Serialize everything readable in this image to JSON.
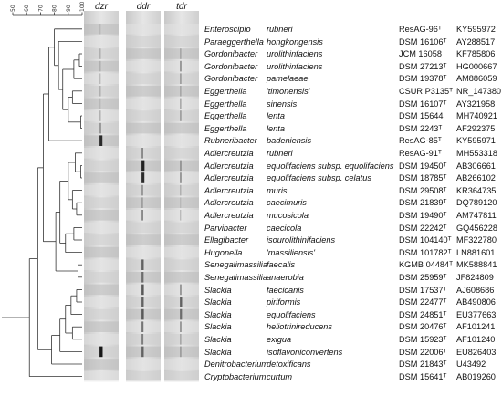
{
  "scale": {
    "ticks": [
      50,
      60,
      70,
      80,
      90,
      100
    ]
  },
  "lanes": [
    {
      "key": "dzr",
      "label": "dzr"
    },
    {
      "key": "ddr",
      "label": "ddr"
    },
    {
      "key": "tdr",
      "label": "tdr"
    }
  ],
  "taxa": [
    {
      "genus": "Enteroscipio",
      "species": "rubneri",
      "strain": "ResAG-96ᵀ",
      "accession": "KY595972",
      "bands": {
        "dzr": 0.1,
        "ddr": 0.0,
        "tdr": 0.0
      }
    },
    {
      "genus": "Paraeggerthella",
      "species": "hongkongensis",
      "strain": "DSM 16106ᵀ",
      "accession": "AY288517",
      "bands": {
        "dzr": 0.0,
        "ddr": 0.0,
        "tdr": 0.0
      }
    },
    {
      "genus": "Gordonibacter",
      "species": "urolithinfaciens",
      "strain": "JCM 16058",
      "accession": "KF785806",
      "bands": {
        "dzr": 0.15,
        "ddr": 0.0,
        "tdr": 0.2
      }
    },
    {
      "genus": "Gordonibacter",
      "species": "urolithinfaciens",
      "strain": "DSM 27213ᵀ",
      "accession": "HG000667",
      "bands": {
        "dzr": 0.15,
        "ddr": 0.0,
        "tdr": 0.3
      }
    },
    {
      "genus": "Gordonibacter",
      "species": "pamelaeae",
      "strain": "DSM 19378ᵀ",
      "accession": "AM886059",
      "bands": {
        "dzr": 0.1,
        "ddr": 0.0,
        "tdr": 0.25
      }
    },
    {
      "genus": "Eggerthella",
      "species": "'timonensis'",
      "strain": "CSUR P3135ᵀ",
      "accession": "NR_147380",
      "bands": {
        "dzr": 0.15,
        "ddr": 0.0,
        "tdr": 0.2
      }
    },
    {
      "genus": "Eggerthella",
      "species": "sinensis",
      "strain": "DSM 16107ᵀ",
      "accession": "AY321958",
      "bands": {
        "dzr": 0.1,
        "ddr": 0.0,
        "tdr": 0.2
      }
    },
    {
      "genus": "Eggerthella",
      "species": "lenta",
      "strain": "DSM 15644",
      "accession": "MH740921",
      "bands": {
        "dzr": 0.15,
        "ddr": 0.0,
        "tdr": 0.25
      }
    },
    {
      "genus": "Eggerthella",
      "species": "lenta",
      "strain": "DSM 2243ᵀ",
      "accession": "AF292375",
      "bands": {
        "dzr": 0.3,
        "ddr": 0.0,
        "tdr": 0.0
      }
    },
    {
      "genus": "Rubneribacter",
      "species": "badeniensis",
      "strain": "ResAG-85ᵀ",
      "accession": "KY595971",
      "bands": {
        "dzr": 0.85,
        "ddr": 0.0,
        "tdr": 0.0
      }
    },
    {
      "genus": "Adlercreutzia",
      "species": "rubneri",
      "strain": "ResAG-91ᵀ",
      "accession": "MH553318",
      "bands": {
        "dzr": 0.0,
        "ddr": 0.35,
        "tdr": 0.0
      }
    },
    {
      "genus": "Adlercreutzia",
      "species": "equolifaciens subsp. equolifaciens",
      "strain": "DSM 19450ᵀ",
      "accession": "AB306661",
      "bands": {
        "dzr": 0.0,
        "ddr": 0.9,
        "tdr": 0.3
      }
    },
    {
      "genus": "Adlercreutzia",
      "species": "equolifaciens subsp. celatus",
      "strain": "DSM 18785ᵀ",
      "accession": "AB266102",
      "bands": {
        "dzr": 0.0,
        "ddr": 0.85,
        "tdr": 0.3
      }
    },
    {
      "genus": "Adlercreutzia",
      "species": "muris",
      "strain": "DSM 29508ᵀ",
      "accession": "KR364735",
      "bands": {
        "dzr": 0.0,
        "ddr": 0.3,
        "tdr": 0.15
      }
    },
    {
      "genus": "Adlercreutzia",
      "species": "caecimuris",
      "strain": "DSM 21839ᵀ",
      "accession": "DQ789120",
      "bands": {
        "dzr": 0.0,
        "ddr": 0.25,
        "tdr": 0.1
      }
    },
    {
      "genus": "Adlercreutzia",
      "species": "mucosicola",
      "strain": "DSM 19490ᵀ",
      "accession": "AM747811",
      "bands": {
        "dzr": 0.0,
        "ddr": 0.35,
        "tdr": 0.1
      }
    },
    {
      "genus": "Parvibacter",
      "species": "caecicola",
      "strain": "DSM 22242ᵀ",
      "accession": "GQ456228",
      "bands": {
        "dzr": 0.0,
        "ddr": 0.0,
        "tdr": 0.0
      }
    },
    {
      "genus": "Ellagibacter",
      "species": "isourolithinifaciens",
      "strain": "DSM 104140ᵀ",
      "accession": "MF322780",
      "bands": {
        "dzr": 0.0,
        "ddr": 0.0,
        "tdr": 0.0
      }
    },
    {
      "genus": "Hugonella",
      "species": "'massiliensis'",
      "strain": "DSM 101782ᵀ",
      "accession": "LN881601",
      "bands": {
        "dzr": 0.0,
        "ddr": 0.0,
        "tdr": 0.0
      }
    },
    {
      "genus": "Senegalimassilia",
      "species": "faecalis",
      "strain": "KGMB 04484ᵀ",
      "accession": "MK588841",
      "bands": {
        "dzr": 0.0,
        "ddr": 0.55,
        "tdr": 0.0
      }
    },
    {
      "genus": "Senegalimassilia",
      "species": "anaerobia",
      "strain": "DSM 25959ᵀ",
      "accession": "JF824809",
      "bands": {
        "dzr": 0.0,
        "ddr": 0.5,
        "tdr": 0.0
      }
    },
    {
      "genus": "Slackia",
      "species": "faecicanis",
      "strain": "DSM 17537ᵀ",
      "accession": "AJ608686",
      "bands": {
        "dzr": 0.0,
        "ddr": 0.6,
        "tdr": 0.3
      }
    },
    {
      "genus": "Slackia",
      "species": "piriformis",
      "strain": "DSM 22477ᵀ",
      "accession": "AB490806",
      "bands": {
        "dzr": 0.0,
        "ddr": 0.55,
        "tdr": 0.55
      }
    },
    {
      "genus": "Slackia",
      "species": "equolifaciens",
      "strain": "DSM 24851ᵀ",
      "accession": "EU377663",
      "bands": {
        "dzr": 0.0,
        "ddr": 0.6,
        "tdr": 0.5
      }
    },
    {
      "genus": "Slackia",
      "species": "heliotrinireducens",
      "strain": "DSM 20476ᵀ",
      "accession": "AF101241",
      "bands": {
        "dzr": 0.0,
        "ddr": 0.45,
        "tdr": 0.3
      }
    },
    {
      "genus": "Slackia",
      "species": "exigua",
      "strain": "DSM 15923ᵀ",
      "accession": "AF101240",
      "bands": {
        "dzr": 0.0,
        "ddr": 0.4,
        "tdr": 0.2
      }
    },
    {
      "genus": "Slackia",
      "species": "isoflavoniconvertens",
      "strain": "DSM 22006ᵀ",
      "accession": "EU826403",
      "bands": {
        "dzr": 0.95,
        "ddr": 0.55,
        "tdr": 0.25
      }
    },
    {
      "genus": "Denitrobacterium",
      "species": "detoxificans",
      "strain": "DSM 21843ᵀ",
      "accession": "U43492",
      "bands": {
        "dzr": 0.0,
        "ddr": 0.0,
        "tdr": 0.0
      }
    },
    {
      "genus": "Cryptobacterium",
      "species": "curtum",
      "strain": "DSM 15641ᵀ",
      "accession": "AB019260",
      "bands": {
        "dzr": 0.0,
        "ddr": 0.0,
        "tdr": 0.0
      }
    }
  ],
  "tree": {
    "clusters": [
      {
        "members": [
          2,
          3
        ],
        "similarity": 98
      },
      {
        "members": [
          2,
          4
        ],
        "similarity": 94
      },
      {
        "members": [
          5,
          6
        ],
        "similarity": 93
      },
      {
        "members": [
          7,
          8
        ],
        "similarity": 99
      },
      {
        "members": [
          5,
          8
        ],
        "similarity": 90
      },
      {
        "members": [
          2,
          8
        ],
        "similarity": 86
      },
      {
        "members": [
          1,
          8
        ],
        "similarity": 83
      },
      {
        "members": [
          0,
          8
        ],
        "similarity": 80
      },
      {
        "members": [
          0,
          9
        ],
        "similarity": 76
      },
      {
        "members": [
          11,
          12
        ],
        "similarity": 99
      },
      {
        "members": [
          10,
          12
        ],
        "similarity": 95
      },
      {
        "members": [
          14,
          15
        ],
        "similarity": 96
      },
      {
        "members": [
          13,
          15
        ],
        "similarity": 93
      },
      {
        "members": [
          10,
          15
        ],
        "similarity": 90
      },
      {
        "members": [
          16,
          17
        ],
        "similarity": 94
      },
      {
        "members": [
          16,
          18
        ],
        "similarity": 88
      },
      {
        "members": [
          10,
          18
        ],
        "similarity": 84
      },
      {
        "members": [
          19,
          20
        ],
        "similarity": 97
      },
      {
        "members": [
          10,
          20
        ],
        "similarity": 81
      },
      {
        "members": [
          0,
          20
        ],
        "similarity": 72
      },
      {
        "members": [
          21,
          22
        ],
        "similarity": 96
      },
      {
        "members": [
          21,
          23
        ],
        "similarity": 92
      },
      {
        "members": [
          24,
          25
        ],
        "similarity": 93
      },
      {
        "members": [
          21,
          25
        ],
        "similarity": 88
      },
      {
        "members": [
          21,
          26
        ],
        "similarity": 84
      },
      {
        "members": [
          21,
          27
        ],
        "similarity": 78
      },
      {
        "members": [
          0,
          27
        ],
        "similarity": 68
      },
      {
        "members": [
          0,
          28
        ],
        "similarity": 62
      }
    ]
  },
  "colors": {
    "lane_background": "#d9d9d9",
    "band_dark": "#1a1a1a",
    "band_light": "#bdbdbd",
    "tree_line": "#333333"
  }
}
